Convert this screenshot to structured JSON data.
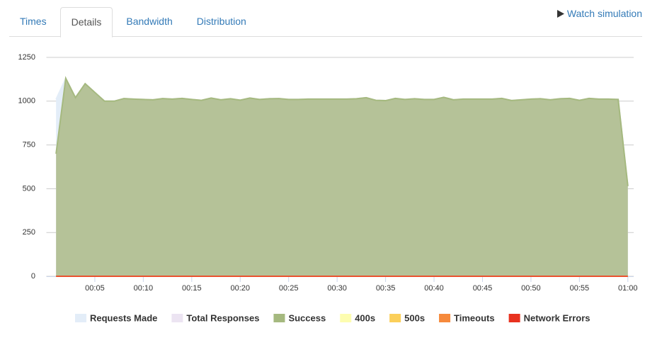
{
  "tabs": [
    "Times",
    "Details",
    "Bandwidth",
    "Distribution"
  ],
  "active_tab": 1,
  "watch_link": "Watch simulation",
  "chart_data": {
    "type": "area",
    "x": [
      1,
      2,
      3,
      4,
      5,
      6,
      7,
      8,
      9,
      10,
      11,
      12,
      13,
      14,
      15,
      16,
      17,
      18,
      19,
      20,
      21,
      22,
      23,
      24,
      25,
      26,
      27,
      28,
      29,
      30,
      31,
      32,
      33,
      34,
      35,
      36,
      37,
      38,
      39,
      40,
      41,
      42,
      43,
      44,
      45,
      46,
      47,
      48,
      49,
      50,
      51,
      52,
      53,
      54,
      55,
      56,
      57,
      58,
      59,
      60
    ],
    "xlim": [
      0,
      60.6
    ],
    "xticks": [
      {
        "value": 5,
        "label": "00:05"
      },
      {
        "value": 10,
        "label": "00:10"
      },
      {
        "value": 15,
        "label": "00:15"
      },
      {
        "value": 20,
        "label": "00:20"
      },
      {
        "value": 25,
        "label": "00:25"
      },
      {
        "value": 30,
        "label": "00:30"
      },
      {
        "value": 35,
        "label": "00:35"
      },
      {
        "value": 40,
        "label": "00:40"
      },
      {
        "value": 45,
        "label": "00:45"
      },
      {
        "value": 50,
        "label": "00:50"
      },
      {
        "value": 55,
        "label": "00:55"
      },
      {
        "value": 60,
        "label": "01:00"
      }
    ],
    "ylim": [
      0,
      1250
    ],
    "yticks": [
      0,
      250,
      500,
      750,
      1000,
      1250
    ],
    "grid": true,
    "series": [
      {
        "name": "Requests Made",
        "color": "#e3edf8",
        "values": [
          1010,
          1130,
          1020,
          1100,
          1050,
          1000,
          1000,
          1015,
          1012,
          1010,
          1008,
          1015,
          1012,
          1016,
          1010,
          1005,
          1018,
          1008,
          1014,
          1006,
          1018,
          1010,
          1014,
          1015,
          1010,
          1010,
          1012,
          1012,
          1012,
          1012,
          1012,
          1014,
          1020,
          1005,
          1003,
          1016,
          1010,
          1014,
          1010,
          1010,
          1022,
          1008,
          1012,
          1012,
          1012,
          1012,
          1016,
          1004,
          1008,
          1012,
          1014,
          1008,
          1014,
          1016,
          1005,
          1016,
          1012,
          1012,
          1010,
          515
        ]
      },
      {
        "name": "Total Responses",
        "color": "#ece4f2",
        "values": [
          700,
          1130,
          1020,
          1100,
          1050,
          1000,
          1000,
          1015,
          1012,
          1010,
          1008,
          1015,
          1012,
          1016,
          1010,
          1005,
          1018,
          1008,
          1014,
          1006,
          1018,
          1010,
          1014,
          1015,
          1010,
          1010,
          1012,
          1012,
          1012,
          1012,
          1012,
          1014,
          1020,
          1005,
          1003,
          1016,
          1010,
          1014,
          1010,
          1010,
          1022,
          1008,
          1012,
          1012,
          1012,
          1012,
          1016,
          1004,
          1008,
          1012,
          1014,
          1008,
          1014,
          1016,
          1005,
          1016,
          1012,
          1012,
          1010,
          515
        ]
      },
      {
        "name": "Success",
        "color": "#a5b97f",
        "values": [
          700,
          1130,
          1020,
          1100,
          1050,
          1000,
          1000,
          1015,
          1012,
          1010,
          1008,
          1015,
          1012,
          1016,
          1010,
          1005,
          1018,
          1008,
          1014,
          1006,
          1018,
          1010,
          1014,
          1015,
          1010,
          1010,
          1012,
          1012,
          1012,
          1012,
          1012,
          1014,
          1020,
          1005,
          1003,
          1016,
          1010,
          1014,
          1010,
          1010,
          1022,
          1008,
          1012,
          1012,
          1012,
          1012,
          1016,
          1004,
          1008,
          1012,
          1014,
          1008,
          1014,
          1016,
          1005,
          1016,
          1012,
          1012,
          1010,
          515
        ]
      },
      {
        "name": "400s",
        "color": "#fdfdb0",
        "values": [
          0,
          0,
          0,
          0,
          0,
          0,
          0,
          0,
          0,
          0,
          0,
          0,
          0,
          0,
          0,
          0,
          0,
          0,
          0,
          0,
          0,
          0,
          0,
          0,
          0,
          0,
          0,
          0,
          0,
          0,
          0,
          0,
          0,
          0,
          0,
          0,
          0,
          0,
          0,
          0,
          0,
          0,
          0,
          0,
          0,
          0,
          0,
          0,
          0,
          0,
          0,
          0,
          0,
          0,
          0,
          0,
          0,
          0,
          0,
          0
        ]
      },
      {
        "name": "500s",
        "color": "#fbcf5a",
        "values": [
          0,
          0,
          0,
          0,
          0,
          0,
          0,
          0,
          0,
          0,
          0,
          0,
          0,
          0,
          0,
          0,
          0,
          0,
          0,
          0,
          0,
          0,
          0,
          0,
          0,
          0,
          0,
          0,
          0,
          0,
          0,
          0,
          0,
          0,
          0,
          0,
          0,
          0,
          0,
          0,
          0,
          0,
          0,
          0,
          0,
          0,
          0,
          0,
          0,
          0,
          0,
          0,
          0,
          0,
          0,
          0,
          0,
          0,
          0,
          0
        ]
      },
      {
        "name": "Timeouts",
        "color": "#f68a3c",
        "values": [
          0,
          0,
          0,
          0,
          0,
          0,
          0,
          0,
          0,
          0,
          0,
          0,
          0,
          0,
          0,
          0,
          0,
          0,
          0,
          0,
          0,
          0,
          0,
          0,
          0,
          0,
          0,
          0,
          0,
          0,
          0,
          0,
          0,
          0,
          0,
          0,
          0,
          0,
          0,
          0,
          0,
          0,
          0,
          0,
          0,
          0,
          0,
          0,
          0,
          0,
          0,
          0,
          0,
          0,
          0,
          0,
          0,
          0,
          0,
          0
        ]
      },
      {
        "name": "Network Errors",
        "color": "#e8321f",
        "values": [
          0,
          0,
          0,
          0,
          0,
          0,
          0,
          0,
          0,
          0,
          0,
          0,
          0,
          0,
          0,
          0,
          0,
          0,
          0,
          0,
          0,
          0,
          0,
          0,
          0,
          0,
          0,
          0,
          0,
          0,
          0,
          0,
          0,
          0,
          0,
          0,
          0,
          0,
          0,
          0,
          0,
          0,
          0,
          0,
          0,
          0,
          0,
          0,
          0,
          0,
          0,
          0,
          0,
          0,
          0,
          0,
          0,
          0,
          0,
          0
        ]
      }
    ]
  }
}
